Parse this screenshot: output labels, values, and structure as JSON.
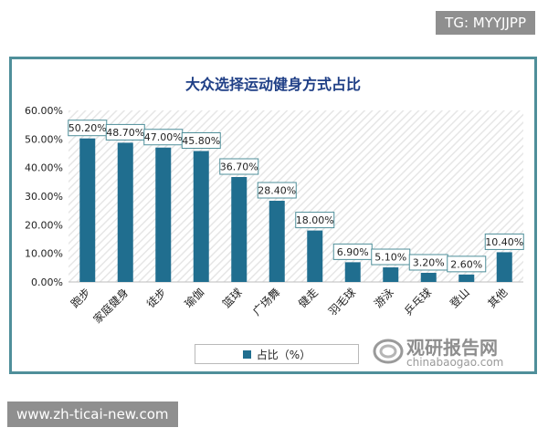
{
  "watermarks": {
    "tg": "TG: MYYJJPP",
    "url": "www.zh-ticai-new.com",
    "brand_cn": "观研报告网",
    "brand_en": "chinabaogao.com"
  },
  "colors": {
    "bar": "#206e8f",
    "frame": "#4f8f9a",
    "title": "#1f3f86",
    "label_border": "#4f8f9a"
  },
  "chart_data": {
    "type": "bar",
    "title": "大众选择运动健身方式占比",
    "categories": [
      "跑步",
      "家庭健身",
      "徒步",
      "瑜伽",
      "篮球",
      "广场舞",
      "健走",
      "羽毛球",
      "游泳",
      "乒乓球",
      "登山",
      "其他"
    ],
    "series": [
      {
        "name": "占比（%）",
        "values": [
          50.2,
          48.7,
          47.0,
          45.8,
          36.7,
          28.4,
          18.0,
          6.9,
          5.1,
          3.2,
          2.6,
          10.4
        ],
        "value_labels": [
          "50.20%",
          "48.70%",
          "47.00%",
          "45.80%",
          "36.70%",
          "28.40%",
          "18.00%",
          "6.90%",
          "5.10%",
          "3.20%",
          "2.60%",
          "10.40%"
        ]
      }
    ],
    "yticks": [
      "0.00%",
      "10.00%",
      "20.00%",
      "30.00%",
      "40.00%",
      "50.00%",
      "60.00%"
    ],
    "ylim": [
      0,
      60
    ],
    "xlabel": "",
    "ylabel": "",
    "grid": false,
    "legend_position": "bottom"
  }
}
